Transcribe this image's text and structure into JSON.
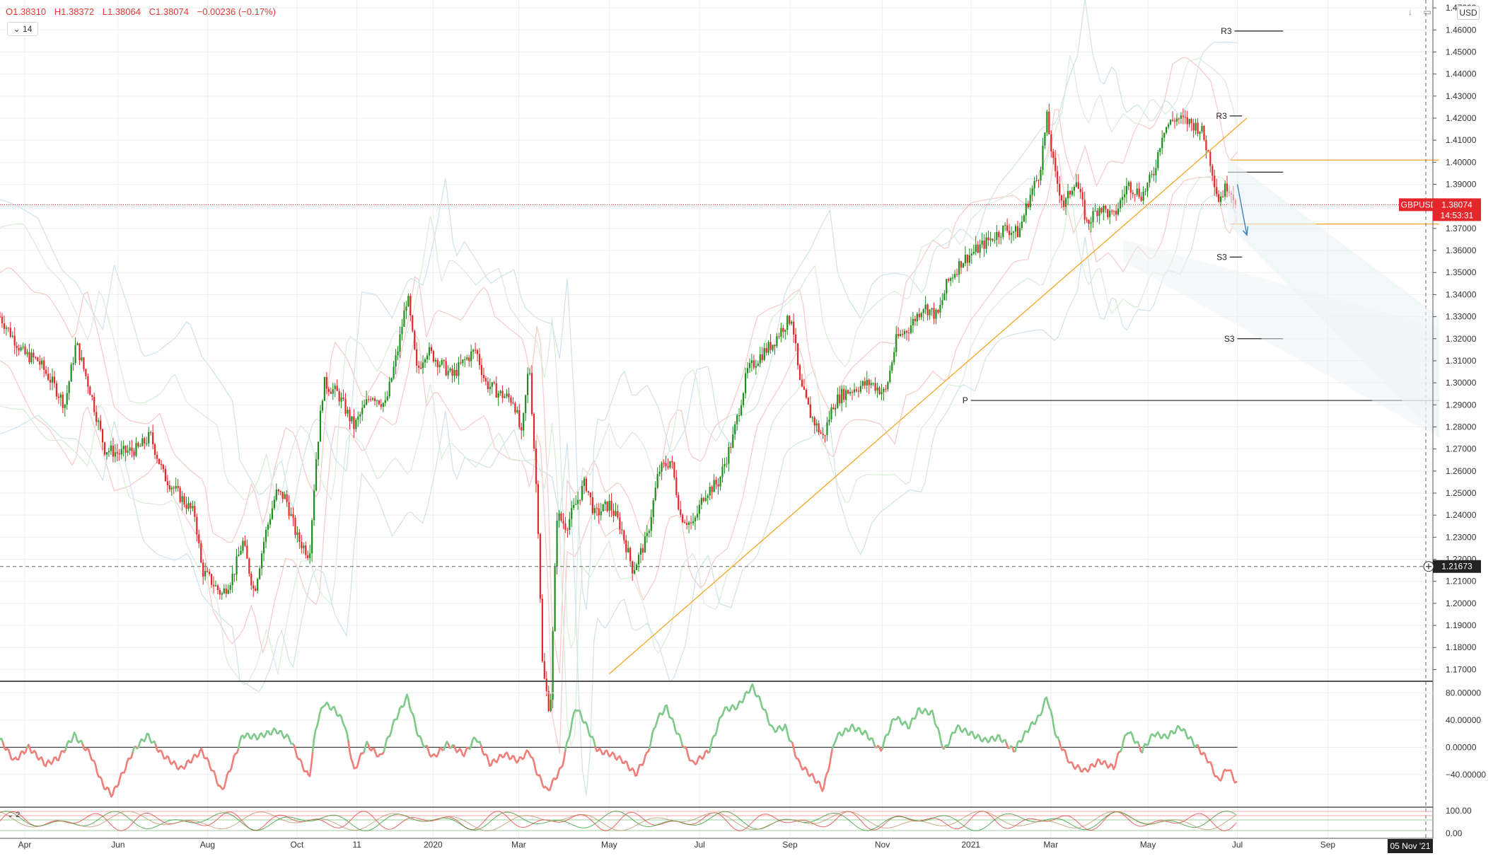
{
  "header": {
    "open": "O1.38310",
    "high": "H1.38372",
    "low": "L1.38064",
    "close": "C1.38074",
    "change": "−0.00236 (−0.17%)",
    "interval": "14",
    "currency": "USD",
    "down_arrow": "↓",
    "settings_icon": "layout-icon"
  },
  "chart_data": [
    {
      "type": "candlestick",
      "title": "",
      "symbol": "GBPUSD",
      "last_price": "1.38074",
      "countdown": "14:53:31",
      "crosshair_price": "1.21673",
      "crosshair_date": "05 Nov '21",
      "y_ticks": [
        "1.47000",
        "1.46000",
        "1.45000",
        "1.44000",
        "1.43000",
        "1.42000",
        "1.41000",
        "1.40000",
        "1.39000",
        "1.38000",
        "1.37000",
        "1.36000",
        "1.35000",
        "1.34000",
        "1.33000",
        "1.32000",
        "1.31000",
        "1.30000",
        "1.29000",
        "1.28000",
        "1.27000",
        "1.26000",
        "1.25000",
        "1.24000",
        "1.23000",
        "1.22000",
        "1.21000",
        "1.20000",
        "1.19000",
        "1.18000",
        "1.17000"
      ],
      "ylim": [
        1.165,
        1.471
      ],
      "x_ticks": [
        "Apr",
        "Jun",
        "Aug",
        "Oct",
        "11",
        "2020",
        "Mar",
        "May",
        "Jul",
        "Sep",
        "Nov",
        "2021",
        "Mar",
        "May",
        "Jul",
        "Sep"
      ],
      "price_path": [
        [
          0,
          1.33
        ],
        [
          25,
          1.313
        ],
        [
          40,
          1.31
        ],
        [
          55,
          1.3
        ],
        [
          68,
          1.29
        ],
        [
          80,
          1.318
        ],
        [
          95,
          1.296
        ],
        [
          110,
          1.27
        ],
        [
          125,
          1.268
        ],
        [
          145,
          1.27
        ],
        [
          158,
          1.276
        ],
        [
          172,
          1.258
        ],
        [
          190,
          1.248
        ],
        [
          205,
          1.24
        ],
        [
          212,
          1.215
        ],
        [
          222,
          1.21
        ],
        [
          233,
          1.204
        ],
        [
          245,
          1.213
        ],
        [
          255,
          1.228
        ],
        [
          267,
          1.205
        ],
        [
          278,
          1.23
        ],
        [
          290,
          1.25
        ],
        [
          300,
          1.248
        ],
        [
          312,
          1.23
        ],
        [
          325,
          1.222
        ],
        [
          332,
          1.265
        ],
        [
          340,
          1.3
        ],
        [
          355,
          1.295
        ],
        [
          372,
          1.28
        ],
        [
          390,
          1.295
        ],
        [
          405,
          1.29
        ],
        [
          418,
          1.315
        ],
        [
          428,
          1.34
        ],
        [
          438,
          1.305
        ],
        [
          448,
          1.315
        ],
        [
          460,
          1.31
        ],
        [
          475,
          1.303
        ],
        [
          488,
          1.31
        ],
        [
          500,
          1.315
        ],
        [
          510,
          1.3
        ],
        [
          525,
          1.295
        ],
        [
          540,
          1.292
        ],
        [
          548,
          1.275
        ],
        [
          556,
          1.31
        ],
        [
          565,
          1.24
        ],
        [
          570,
          1.17
        ],
        [
          578,
          1.15
        ],
        [
          585,
          1.24
        ],
        [
          595,
          1.235
        ],
        [
          605,
          1.245
        ],
        [
          615,
          1.255
        ],
        [
          625,
          1.24
        ],
        [
          640,
          1.245
        ],
        [
          652,
          1.235
        ],
        [
          665,
          1.215
        ],
        [
          680,
          1.23
        ],
        [
          692,
          1.26
        ],
        [
          705,
          1.265
        ],
        [
          715,
          1.24
        ],
        [
          728,
          1.235
        ],
        [
          740,
          1.25
        ],
        [
          755,
          1.255
        ],
        [
          770,
          1.275
        ],
        [
          785,
          1.305
        ],
        [
          798,
          1.312
        ],
        [
          812,
          1.318
        ],
        [
          822,
          1.325
        ],
        [
          832,
          1.33
        ],
        [
          840,
          1.3
        ],
        [
          852,
          1.285
        ],
        [
          865,
          1.275
        ],
        [
          875,
          1.29
        ],
        [
          885,
          1.295
        ],
        [
          900,
          1.298
        ],
        [
          915,
          1.3
        ],
        [
          930,
          1.295
        ],
        [
          942,
          1.32
        ],
        [
          955,
          1.325
        ],
        [
          970,
          1.335
        ],
        [
          985,
          1.33
        ],
        [
          995,
          1.345
        ],
        [
          1010,
          1.355
        ],
        [
          1025,
          1.36
        ],
        [
          1040,
          1.365
        ],
        [
          1055,
          1.37
        ],
        [
          1070,
          1.368
        ],
        [
          1082,
          1.385
        ],
        [
          1092,
          1.395
        ],
        [
          1100,
          1.42
        ],
        [
          1108,
          1.395
        ],
        [
          1118,
          1.38
        ],
        [
          1130,
          1.393
        ],
        [
          1142,
          1.372
        ],
        [
          1155,
          1.38
        ],
        [
          1170,
          1.375
        ],
        [
          1185,
          1.39
        ],
        [
          1200,
          1.385
        ],
        [
          1212,
          1.395
        ],
        [
          1222,
          1.415
        ],
        [
          1235,
          1.42
        ],
        [
          1250,
          1.418
        ],
        [
          1262,
          1.415
        ],
        [
          1272,
          1.4
        ],
        [
          1280,
          1.383
        ],
        [
          1290,
          1.39
        ],
        [
          1300,
          1.381
        ]
      ],
      "pivot_levels": [
        {
          "label": "R3",
          "value": 1.4595
        },
        {
          "label": "R3",
          "value": 1.421
        },
        {
          "label": "S3",
          "value": 1.357
        },
        {
          "label": "S3",
          "value": 1.32
        },
        {
          "label": "P",
          "value": 1.292
        }
      ],
      "horizontal_levels": [
        1.401,
        1.3955,
        1.372
      ],
      "trendline": [
        [
          640,
          1.168
        ],
        [
          1310,
          1.42
        ]
      ]
    },
    {
      "type": "line",
      "title": "",
      "y_ticks": [
        "80.00000",
        "40.00000",
        "0.00000",
        "−40.00000"
      ],
      "ylim": [
        -85,
        92
      ],
      "zero_line": 0,
      "oscillator": [
        [
          0,
          12
        ],
        [
          15,
          -20
        ],
        [
          30,
          0
        ],
        [
          48,
          -25
        ],
        [
          62,
          -15
        ],
        [
          78,
          18
        ],
        [
          95,
          -10
        ],
        [
          108,
          -55
        ],
        [
          118,
          -70
        ],
        [
          130,
          -35
        ],
        [
          140,
          -5
        ],
        [
          155,
          18
        ],
        [
          170,
          -10
        ],
        [
          190,
          -32
        ],
        [
          212,
          -5
        ],
        [
          222,
          -30
        ],
        [
          233,
          -65
        ],
        [
          245,
          -20
        ],
        [
          255,
          18
        ],
        [
          270,
          15
        ],
        [
          290,
          25
        ],
        [
          305,
          12
        ],
        [
          315,
          -20
        ],
        [
          325,
          -45
        ],
        [
          332,
          30
        ],
        [
          340,
          65
        ],
        [
          352,
          55
        ],
        [
          362,
          35
        ],
        [
          372,
          -35
        ],
        [
          385,
          5
        ],
        [
          400,
          -15
        ],
        [
          415,
          40
        ],
        [
          428,
          75
        ],
        [
          440,
          15
        ],
        [
          455,
          -15
        ],
        [
          470,
          5
        ],
        [
          488,
          -10
        ],
        [
          500,
          15
        ],
        [
          515,
          -25
        ],
        [
          530,
          -10
        ],
        [
          545,
          -20
        ],
        [
          556,
          -5
        ],
        [
          565,
          -40
        ],
        [
          575,
          -65
        ],
        [
          590,
          -30
        ],
        [
          605,
          60
        ],
        [
          615,
          35
        ],
        [
          628,
          -5
        ],
        [
          642,
          -10
        ],
        [
          655,
          -20
        ],
        [
          668,
          -40
        ],
        [
          680,
          -10
        ],
        [
          690,
          40
        ],
        [
          700,
          60
        ],
        [
          712,
          20
        ],
        [
          728,
          -25
        ],
        [
          745,
          -5
        ],
        [
          760,
          55
        ],
        [
          775,
          60
        ],
        [
          790,
          90
        ],
        [
          800,
          65
        ],
        [
          812,
          25
        ],
        [
          825,
          30
        ],
        [
          840,
          -25
        ],
        [
          855,
          -45
        ],
        [
          865,
          -62
        ],
        [
          878,
          15
        ],
        [
          895,
          30
        ],
        [
          910,
          20
        ],
        [
          925,
          -5
        ],
        [
          940,
          45
        ],
        [
          955,
          30
        ],
        [
          965,
          55
        ],
        [
          980,
          50
        ],
        [
          992,
          -5
        ],
        [
          1005,
          30
        ],
        [
          1020,
          20
        ],
        [
          1035,
          10
        ],
        [
          1050,
          15
        ],
        [
          1065,
          -5
        ],
        [
          1082,
          30
        ],
        [
          1092,
          45
        ],
        [
          1100,
          75
        ],
        [
          1110,
          15
        ],
        [
          1125,
          -25
        ],
        [
          1140,
          -35
        ],
        [
          1155,
          -20
        ],
        [
          1170,
          -30
        ],
        [
          1185,
          25
        ],
        [
          1200,
          -5
        ],
        [
          1212,
          20
        ],
        [
          1225,
          15
        ],
        [
          1240,
          30
        ],
        [
          1255,
          5
        ],
        [
          1270,
          -20
        ],
        [
          1280,
          -50
        ],
        [
          1290,
          -30
        ],
        [
          1300,
          -55
        ]
      ]
    },
    {
      "type": "line",
      "title": "",
      "y_ticks": [
        "100.00",
        "0.00"
      ],
      "ylim": [
        0,
        100
      ],
      "series_count": 2
    }
  ],
  "colors": {
    "up": "#1e8e1e",
    "down": "#e5262a",
    "trendline": "#f5a623",
    "grid": "#eeeeee",
    "osc_up": "#7fc98a",
    "osc_down": "#ef7f7b"
  }
}
